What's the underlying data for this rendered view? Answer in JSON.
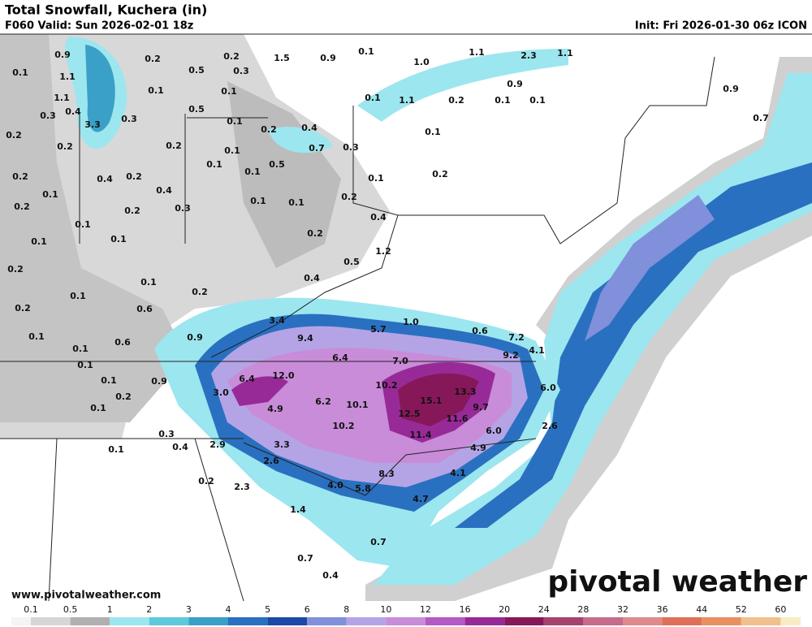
{
  "header": {
    "title": "Total Snowfall, Kuchera (in)",
    "valid": "F060 Valid: Sun 2026-02-01 18z",
    "init": "Init: Fri 2026-01-30 06z ICON"
  },
  "labels": [
    "0.9",
    "1.5",
    "0.9",
    "0.1",
    "1.0",
    "1.1",
    "2.3",
    "1.1",
    "0.2",
    "0.2",
    "0.5",
    "0.3",
    "0.1",
    "1.1",
    "0.1",
    "0.1",
    "0.9",
    "0.1",
    "1.1",
    "0.2",
    "0.1",
    "0.1",
    "0.9",
    "1.1",
    "0.4",
    "0.3",
    "0.3",
    "0.5",
    "3.3",
    "0.1",
    "0.2",
    "0.4",
    "0.7",
    "0.1",
    "0.2",
    "0.2",
    "0.2",
    "0.1",
    "0.7",
    "0.3",
    "0.5",
    "0.1",
    "0.1",
    "0.2",
    "0.4",
    "0.2",
    "0.1",
    "0.2",
    "0.1",
    "0.4",
    "0.2",
    "0.1",
    "0.1",
    "0.2",
    "0.2",
    "0.3",
    "0.4",
    "0.1",
    "0.1",
    "0.1",
    "0.2",
    "1.2",
    "0.2",
    "0.5",
    "0.1",
    "0.4",
    "0.1",
    "0.2",
    "0.6",
    "0.2",
    "3.4",
    "1.0",
    "0.6",
    "0.1",
    "0.6",
    "9.4",
    "5.7",
    "7.2",
    "0.9",
    "0.1",
    "6.4",
    "7.0",
    "9.2",
    "4.1",
    "0.1",
    "0.1",
    "0.9",
    "6.4",
    "12.0",
    "10.2",
    "13.3",
    "6.0",
    "0.2",
    "3.0",
    "6.2",
    "10.1",
    "15.1",
    "9.7",
    "0.1",
    "4.9",
    "12.5",
    "11.6",
    "10.2",
    "6.0",
    "2.6",
    "0.3",
    "11.4",
    "0.4",
    "2.9",
    "3.3",
    "4.9",
    "0.1",
    "2.6",
    "8.3",
    "4.1",
    "0.2",
    "2.3",
    "4.0",
    "5.8",
    "4.7",
    "1.4",
    "0.7",
    "0.7",
    "0.4"
  ],
  "legend": {
    "labels": [
      0.1,
      0.5,
      1,
      2,
      3,
      4,
      5,
      6,
      8,
      10,
      12,
      16,
      20,
      24,
      28,
      32,
      36,
      44,
      52,
      60
    ],
    "colors": [
      "#f4f4f4",
      "#d6d6d6",
      "#b0b0b0",
      "#9ce6ef",
      "#5ec8dc",
      "#3aa0c8",
      "#2a70c0",
      "#1c48a8",
      "#8090da",
      "#b4a4e6",
      "#c88cd8",
      "#b45ac4",
      "#982a98",
      "#86185a",
      "#a64270",
      "#c66c8a",
      "#de8a8a",
      "#de705a",
      "#e8905e",
      "#f0c08e",
      "#f8ecc4"
    ]
  },
  "watermark": {
    "brand": "pivotal weather",
    "url": "www.pivotalweather.com"
  }
}
